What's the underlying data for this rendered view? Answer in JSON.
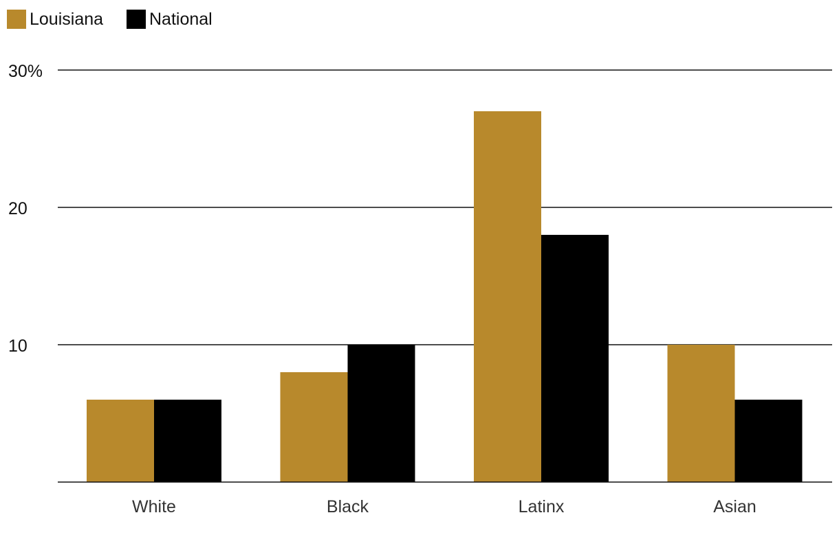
{
  "chart_data": {
    "type": "bar",
    "categories": [
      "White",
      "Black",
      "Latinx",
      "Asian"
    ],
    "series": [
      {
        "name": "Louisiana",
        "values": [
          6,
          8,
          27,
          10
        ],
        "color": "#b8892c"
      },
      {
        "name": "National",
        "values": [
          6,
          10,
          18,
          6
        ],
        "color": "#000000"
      }
    ],
    "y_ticks": [
      {
        "value": 10,
        "label": "10"
      },
      {
        "value": 20,
        "label": "20"
      },
      {
        "value": 30,
        "label": "30%"
      }
    ],
    "ylim": [
      0,
      30
    ],
    "grid": true,
    "legend_position": "top-left",
    "title": "",
    "xlabel": "",
    "ylabel": ""
  }
}
